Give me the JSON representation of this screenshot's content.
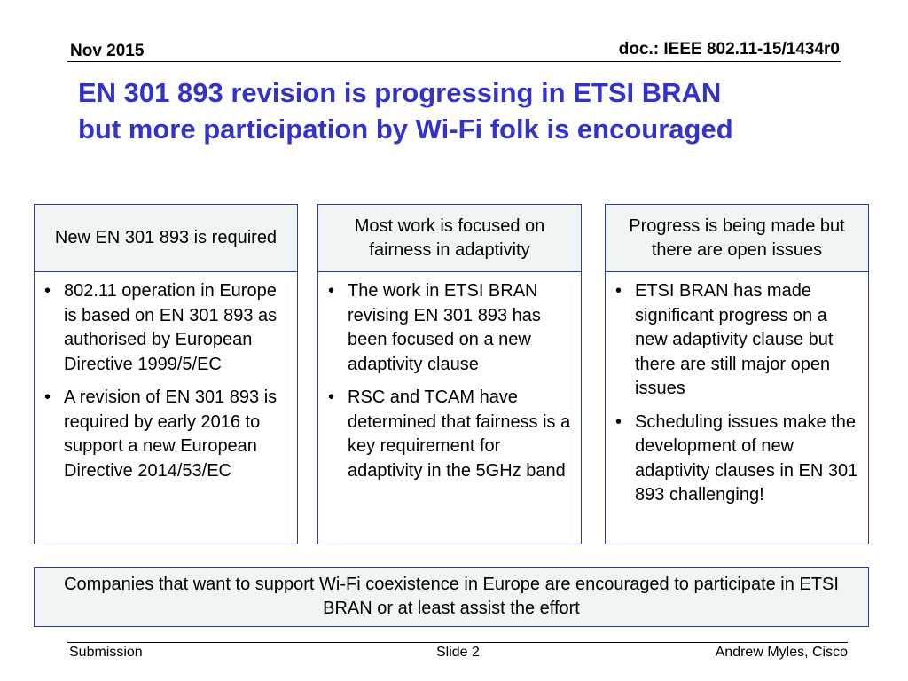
{
  "header": {
    "date": "Nov 2015",
    "doc": "doc.: IEEE 802.11-15/1434r0"
  },
  "title": {
    "line1": "EN 301 893 revision is progressing in ETSI BRAN",
    "line2": "but more participation by Wi-Fi folk is encouraged"
  },
  "boxes": [
    {
      "heading": "New EN 301 893 is required",
      "bullets": [
        "802.11 operation  in Europe  is based on EN 301 893 as authorised by European Directive 1999/5/EC",
        "A revision of EN 301 893 is required by early 2016 to support a new European Directive 2014/53/EC"
      ]
    },
    {
      "heading": "Most work is focused on fairness in adaptivity",
      "bullets": [
        "The work in ETSI BRAN revising EN 301 893 has been focused on a new adaptivity clause",
        "RSC and TCAM have determined that fairness is a key requirement for adaptivity in the 5GHz band"
      ]
    },
    {
      "heading": "Progress is being made but there are open issues",
      "bullets": [
        "ETSI BRAN has made significant progress on a new adaptivity clause but there are still major open issues",
        "Scheduling issues make the development of new adaptivity clauses in EN 301 893 challenging!"
      ]
    }
  ],
  "bullet_symbol": "•",
  "conclusion": "Companies that want to support Wi-Fi coexistence in Europe are encouraged to participate in ETSI BRAN or at least  assist the effort",
  "footer": {
    "left": "Submission",
    "center": "Slide 2",
    "right": "Andrew Myles, Cisco"
  },
  "colors": {
    "title": "#3333cc",
    "border": "#2e3a9c",
    "panel_fill": "#eef5f3"
  }
}
